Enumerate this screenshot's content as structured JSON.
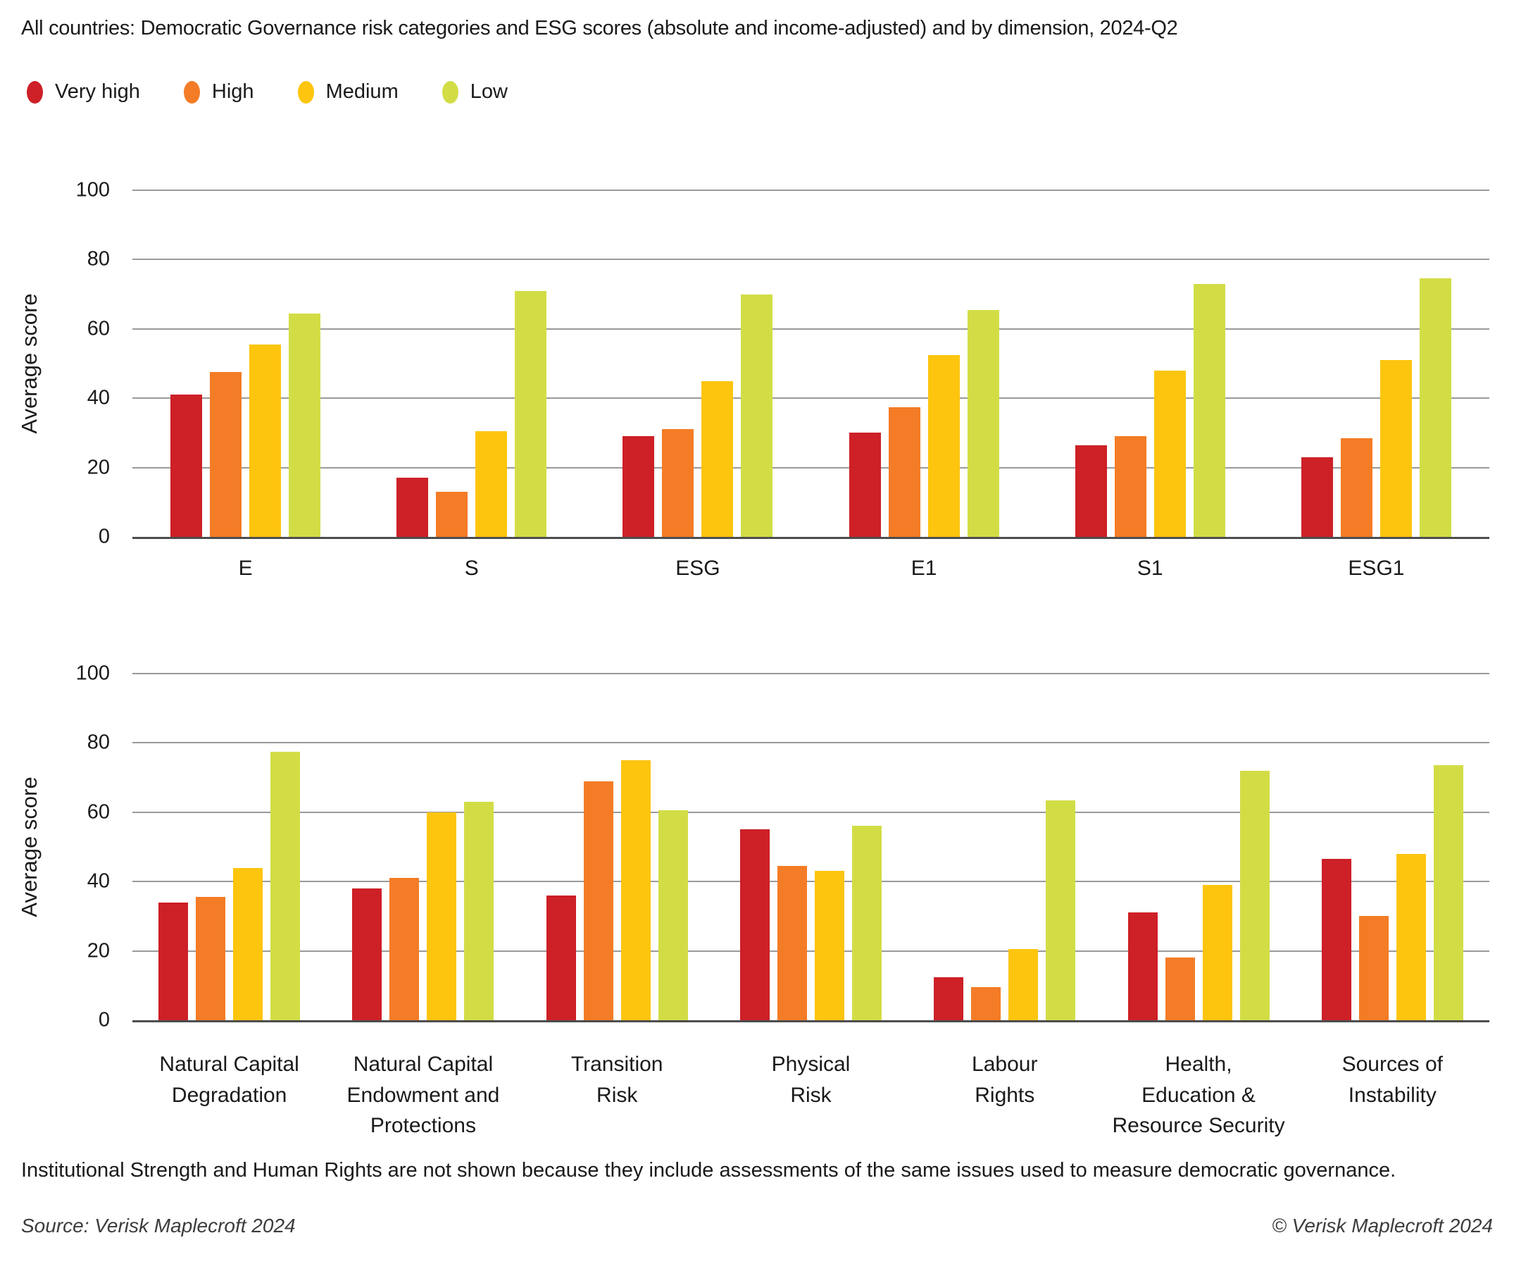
{
  "title": "All countries: Democratic Governance risk categories and ESG scores (absolute and income-adjusted) and by dimension, 2024-Q2",
  "legend": [
    {
      "label": "Very high",
      "color": "#cd2027"
    },
    {
      "label": "High",
      "color": "#f47c26"
    },
    {
      "label": "Medium",
      "color": "#fdc50e"
    },
    {
      "label": "Low",
      "color": "#d2dd46"
    }
  ],
  "colors": {
    "very_high": "#cd2027",
    "high": "#f47c26",
    "medium": "#fdc50e",
    "low": "#d2dd46",
    "gridline": "#9a9a9a",
    "baseline": "#4d4d4d"
  },
  "footnote": "Institutional Strength and Human Rights are not shown because they include assessments of the same issues used to measure democratic governance.",
  "source": "Source: Verisk Maplecroft 2024",
  "copyright": "© Verisk Maplecroft 2024",
  "chart_data": [
    {
      "type": "bar",
      "title": "",
      "ylabel": "Average score",
      "xlabel": "",
      "ylim": [
        0,
        100
      ],
      "yticks": [
        0,
        20,
        40,
        60,
        80,
        100
      ],
      "grid": true,
      "legend_position": "top-left",
      "categories": [
        "E",
        "S",
        "ESG",
        "E1",
        "S1",
        "ESG1"
      ],
      "series": [
        {
          "name": "Very high",
          "color": "#cd2027",
          "values": [
            41,
            17,
            29,
            30,
            26.5,
            23
          ]
        },
        {
          "name": "High",
          "color": "#f47c26",
          "values": [
            47.5,
            13,
            31,
            37.5,
            29,
            28.5
          ]
        },
        {
          "name": "Medium",
          "color": "#fdc50e",
          "values": [
            55.5,
            30.5,
            45,
            52.5,
            48,
            51
          ]
        },
        {
          "name": "Low",
          "color": "#d2dd46",
          "values": [
            64.5,
            71,
            70,
            65.5,
            73,
            74.5
          ]
        }
      ]
    },
    {
      "type": "bar",
      "title": "",
      "ylabel": "Average score",
      "xlabel": "",
      "ylim": [
        0,
        100
      ],
      "yticks": [
        0,
        20,
        40,
        60,
        80,
        100
      ],
      "grid": true,
      "legend_position": "shared-top-left",
      "categories": [
        "Natural Capital\nDegradation",
        "Natural Capital\nEndowment and\nProtections",
        "Transition\nRisk",
        "Physical\nRisk",
        "Labour\nRights",
        "Health,\nEducation &\nResource Security",
        "Sources of\nInstability"
      ],
      "series": [
        {
          "name": "Very high",
          "color": "#cd2027",
          "values": [
            34,
            38,
            36,
            55,
            12.5,
            31,
            46.5
          ]
        },
        {
          "name": "High",
          "color": "#f47c26",
          "values": [
            35.5,
            41,
            69,
            44.5,
            9.5,
            18,
            30
          ]
        },
        {
          "name": "Medium",
          "color": "#fdc50e",
          "values": [
            44,
            60,
            75,
            43,
            20.5,
            39,
            48
          ]
        },
        {
          "name": "Low",
          "color": "#d2dd46",
          "values": [
            77.5,
            63,
            60.5,
            56,
            63.5,
            72,
            73.5
          ]
        }
      ]
    }
  ]
}
